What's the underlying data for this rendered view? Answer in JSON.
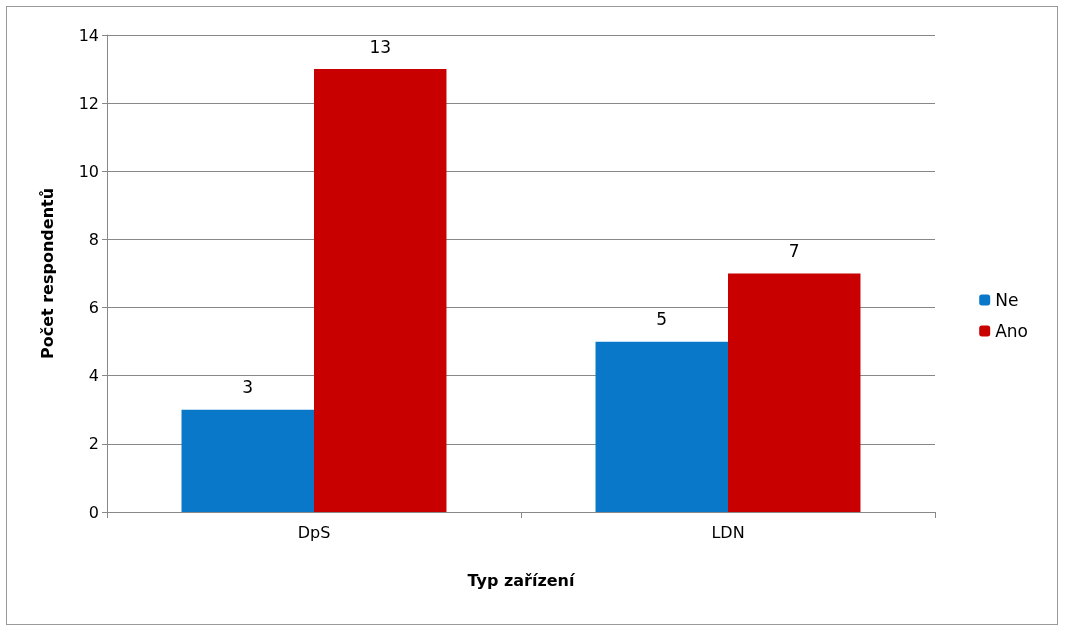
{
  "chart_data": {
    "type": "bar",
    "xlabel": "Typ zařízení",
    "ylabel": "Počet respondentů",
    "categories": [
      "DpS",
      "LDN"
    ],
    "series": [
      {
        "name": "Ne",
        "color": "#0a78c8",
        "values": [
          3,
          5
        ]
      },
      {
        "name": "Ano",
        "color": "#c80000",
        "values": [
          13,
          7
        ]
      }
    ],
    "ylim": [
      0,
      14
    ],
    "yticks": [
      0,
      2,
      4,
      6,
      8,
      10,
      12,
      14
    ],
    "grid": "y",
    "legend": "right",
    "data_labels": true
  }
}
